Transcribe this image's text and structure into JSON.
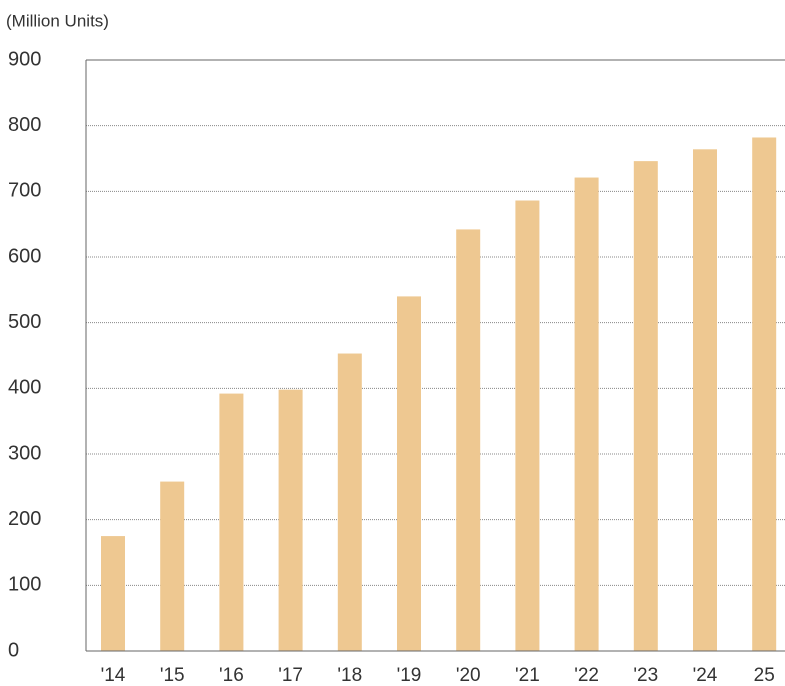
{
  "chart_data": {
    "type": "bar",
    "y_label": "(Million Units)",
    "categories": [
      "'14",
      "'15",
      "'16",
      "'17",
      "'18",
      "'19",
      "'20",
      "'21",
      "'22",
      "'23",
      "'24",
      "25"
    ],
    "values": [
      175,
      258,
      392,
      398,
      453,
      540,
      642,
      686,
      721,
      746,
      764,
      782
    ],
    "color": "#eec891",
    "ylim": [
      0,
      900
    ],
    "yticks": [
      0,
      100,
      200,
      300,
      400,
      500,
      600,
      700,
      800,
      900
    ],
    "grid": true
  }
}
